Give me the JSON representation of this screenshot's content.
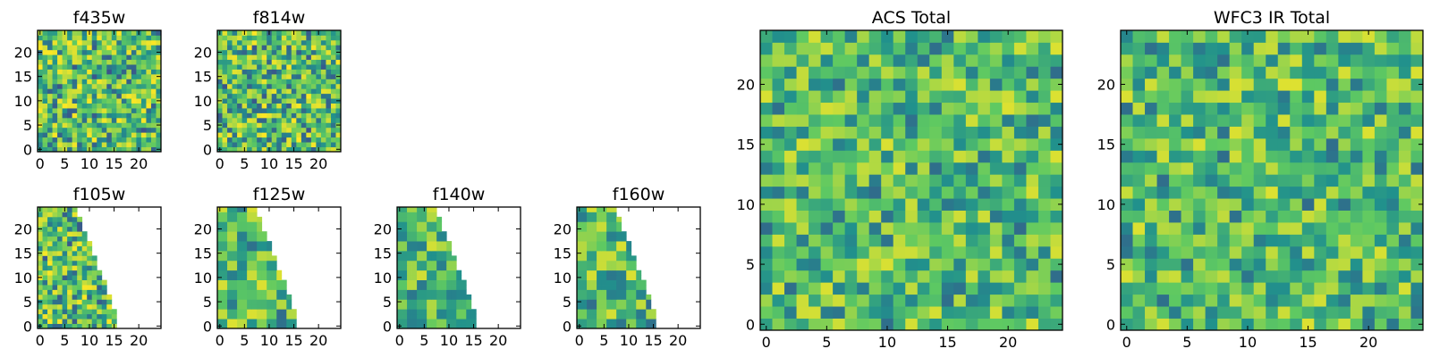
{
  "colormap": {
    "name": "viridis",
    "stops": [
      "#440154",
      "#3b528b",
      "#21918c",
      "#5ec962",
      "#fde725"
    ]
  },
  "chart_data": [
    {
      "type": "heatmap",
      "title": "f435w",
      "xticks": [
        "0",
        "5",
        "10",
        "15",
        "20"
      ],
      "yticks": [
        "0",
        "5",
        "10",
        "15",
        "20"
      ],
      "xlim": [
        0,
        25
      ],
      "ylim": [
        0,
        25
      ],
      "grid": false,
      "mask": "none",
      "texture": "noisy",
      "seed": 11,
      "cells_per_pixel": 1
    },
    {
      "type": "heatmap",
      "title": "f814w",
      "xticks": [
        "0",
        "5",
        "10",
        "15",
        "20"
      ],
      "yticks": [
        "0",
        "5",
        "10",
        "15",
        "20"
      ],
      "xlim": [
        0,
        25
      ],
      "ylim": [
        0,
        25
      ],
      "grid": false,
      "mask": "none",
      "texture": "noisy",
      "seed": 23,
      "cells_per_pixel": 1
    },
    {
      "type": "heatmap",
      "title": "f105w",
      "xticks": [
        "0",
        "5",
        "10",
        "15",
        "20"
      ],
      "yticks": [
        "0",
        "5",
        "10",
        "15",
        "20"
      ],
      "xlim": [
        0,
        25
      ],
      "ylim": [
        0,
        25
      ],
      "grid": false,
      "mask": "diagonal",
      "texture": "noisy",
      "seed": 37,
      "cells_per_pixel": 1
    },
    {
      "type": "heatmap",
      "title": "f125w",
      "xticks": [
        "0",
        "5",
        "10",
        "15",
        "20"
      ],
      "yticks": [
        "0",
        "5",
        "10",
        "15",
        "20"
      ],
      "xlim": [
        0,
        25
      ],
      "ylim": [
        0,
        25
      ],
      "grid": false,
      "mask": "diagonal",
      "texture": "smooth",
      "seed": 41,
      "cells_per_pixel": 2
    },
    {
      "type": "heatmap",
      "title": "f140w",
      "xticks": [
        "0",
        "5",
        "10",
        "15",
        "20"
      ],
      "yticks": [
        "0",
        "5",
        "10",
        "15",
        "20"
      ],
      "xlim": [
        0,
        25
      ],
      "ylim": [
        0,
        25
      ],
      "grid": false,
      "mask": "diagonal",
      "texture": "smooth",
      "seed": 53,
      "cells_per_pixel": 2
    },
    {
      "type": "heatmap",
      "title": "f160w",
      "xticks": [
        "0",
        "5",
        "10",
        "15",
        "20"
      ],
      "yticks": [
        "0",
        "5",
        "10",
        "15",
        "20"
      ],
      "xlim": [
        0,
        25
      ],
      "ylim": [
        0,
        25
      ],
      "grid": false,
      "mask": "diagonal",
      "texture": "smooth",
      "seed": 67,
      "cells_per_pixel": 2
    },
    {
      "type": "heatmap",
      "title": "ACS Total",
      "xticks": [
        "0",
        "5",
        "10",
        "15",
        "20"
      ],
      "yticks": [
        "0",
        "5",
        "10",
        "15",
        "20"
      ],
      "xlim": [
        0,
        25
      ],
      "ylim": [
        0,
        25
      ],
      "grid": false,
      "mask": "none",
      "texture": "blocky",
      "seed": 71,
      "cells_per_pixel": 1
    },
    {
      "type": "heatmap",
      "title": "WFC3 IR Total",
      "xticks": [
        "0",
        "5",
        "10",
        "15",
        "20"
      ],
      "yticks": [
        "0",
        "5",
        "10",
        "15",
        "20"
      ],
      "xlim": [
        0,
        25
      ],
      "ylim": [
        0,
        25
      ],
      "grid": false,
      "mask": "none",
      "texture": "blocky",
      "seed": 89,
      "cells_per_pixel": 1
    }
  ]
}
